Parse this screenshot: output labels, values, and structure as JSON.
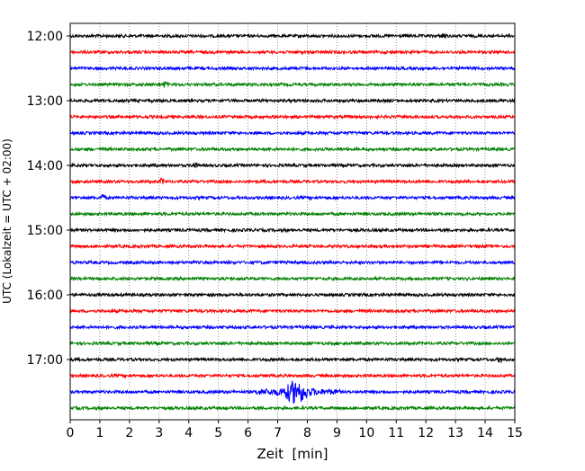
{
  "chart_data": {
    "type": "line",
    "title": "",
    "xlabel": "Zeit  [min]",
    "ylabel": "UTC (Lokalzeit = UTC + 02:00)",
    "xlim": [
      0,
      15
    ],
    "x_ticks": [
      "0",
      "1",
      "2",
      "3",
      "4",
      "5",
      "6",
      "7",
      "8",
      "9",
      "10",
      "11",
      "12",
      "13",
      "14",
      "15"
    ],
    "y_tick_labels": [
      "12:00",
      "13:00",
      "14:00",
      "15:00",
      "16:00",
      "17:00"
    ],
    "row_minutes": 15,
    "row_count": 24,
    "row_colors": [
      "#000000",
      "#ff0000",
      "#0000ff",
      "#008000"
    ],
    "grid": "vertical dotted at each minute",
    "events": [
      {
        "row": 0,
        "time_min": 12.6,
        "amplitude": 4
      },
      {
        "row": 3,
        "time_min": 3.2,
        "amplitude": 3
      },
      {
        "row": 8,
        "time_min": 4.2,
        "amplitude": 3
      },
      {
        "row": 9,
        "time_min": 3.1,
        "amplitude": 3
      },
      {
        "row": 10,
        "time_min": 1.1,
        "amplitude": 4
      },
      {
        "row": 20,
        "time_min": 14.5,
        "amplitude": 4
      },
      {
        "row": 22,
        "time_min": 7.6,
        "amplitude": 10,
        "duration_min": 2.8,
        "onset_min": 6.3
      }
    ]
  }
}
